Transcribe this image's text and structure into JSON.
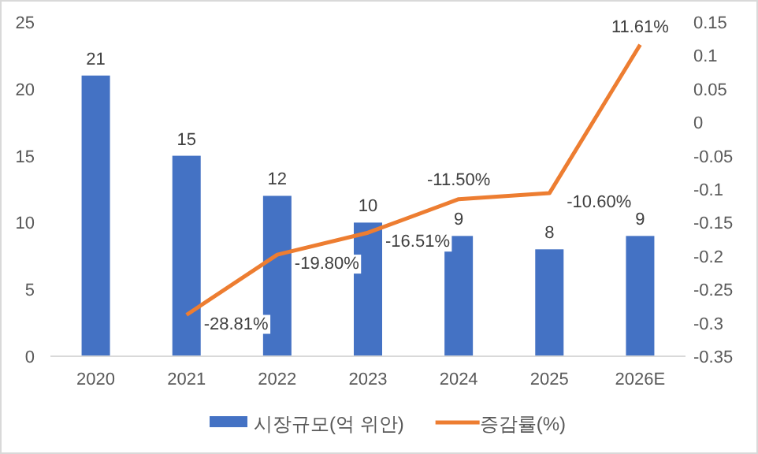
{
  "chart_data": {
    "type": "bar",
    "categories": [
      "2020",
      "2021",
      "2022",
      "2023",
      "2024",
      "2025",
      "2026E"
    ],
    "series": [
      {
        "name": "시장규모(억 위안)",
        "color": "#4472c4",
        "values": [
          21,
          15,
          12,
          10,
          9,
          8,
          9
        ],
        "data_labels": true
      },
      {
        "name": "증감률(%)",
        "type": "line",
        "axis": "y2",
        "color": "#ed7d31",
        "values": [
          null,
          -0.2881,
          -0.198,
          -0.1651,
          -0.115,
          -0.106,
          0.1161
        ],
        "value_labels": [
          null,
          "-28.81%",
          "-19.80%",
          "-16.51%",
          "-11.50%",
          "-10.60%",
          "11.61%"
        ],
        "marker": "none"
      }
    ],
    "ylim": [
      0,
      25
    ],
    "yticks": [
      0,
      5,
      10,
      15,
      20,
      25
    ],
    "y2lim": [
      -0.35,
      0.15
    ],
    "y2ticks": [
      -0.35,
      -0.3,
      -0.25,
      -0.2,
      -0.15,
      -0.1,
      -0.05,
      0,
      0.05,
      0.1,
      0.15
    ],
    "grid": false,
    "legend": "bottom"
  }
}
